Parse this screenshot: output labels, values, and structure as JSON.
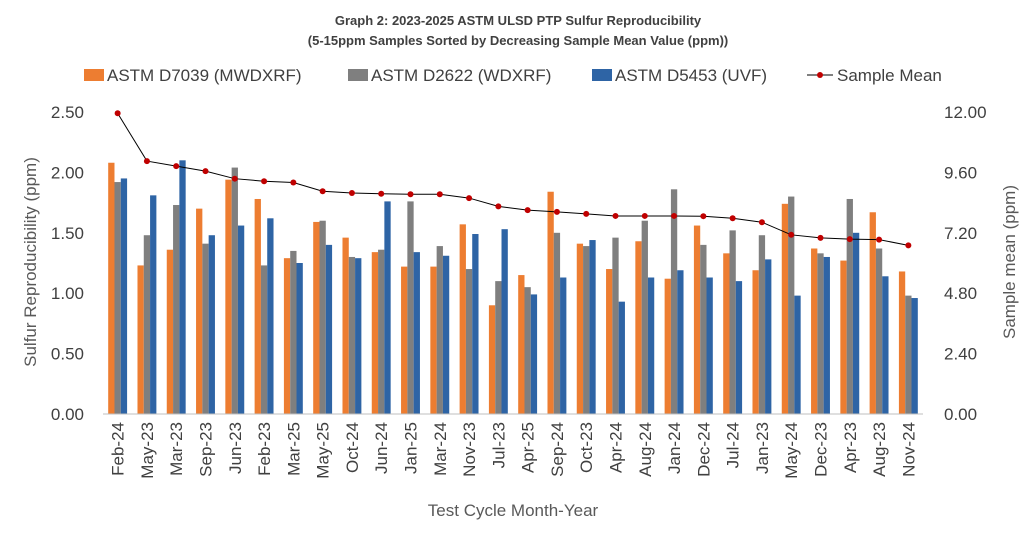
{
  "chart_data": {
    "type": "bar",
    "title": "Graph 2: 2023-2025 ASTM ULSD PTP Sulfur Reproducibility",
    "subtitle": "(5-15ppm Samples Sorted by Decreasing Sample Mean Value (ppm))",
    "xlabel": "Test Cycle Month-Year",
    "ylabel": "Sulfur Reproducibility (ppm)",
    "y2label": "Sample mean (ppm)",
    "ylim": [
      0,
      2.5
    ],
    "y2lim": [
      0,
      12
    ],
    "yticks": [
      "0.00",
      "0.50",
      "1.00",
      "1.50",
      "2.00",
      "2.50"
    ],
    "y2ticks": [
      "0.00",
      "2.40",
      "4.80",
      "7.20",
      "9.60",
      "12.00"
    ],
    "grid": false,
    "legend_position": "top",
    "categories": [
      "Feb-24",
      "May-23",
      "Mar-23",
      "Sep-23",
      "Jun-23",
      "Feb-23",
      "Mar-25",
      "May-25",
      "Oct-24",
      "Jun-24",
      "Jan-25",
      "Mar-24",
      "Nov-23",
      "Jul-23",
      "Apr-25",
      "Sep-24",
      "Oct-23",
      "Apr-24",
      "Aug-24",
      "Jan-24",
      "Dec-24",
      "Jul-24",
      "Jan-23",
      "May-24",
      "Dec-23",
      "Apr-23",
      "Aug-23",
      "Nov-24"
    ],
    "series": [
      {
        "name": "ASTM D7039 (MWDXRF)",
        "kind": "bar",
        "color": "#ED7D31",
        "values": [
          2.08,
          1.23,
          1.36,
          1.7,
          1.94,
          1.78,
          1.29,
          1.59,
          1.46,
          1.34,
          1.22,
          1.22,
          1.57,
          0.9,
          1.15,
          1.84,
          1.41,
          1.2,
          1.43,
          1.12,
          1.56,
          1.33,
          1.19,
          1.74,
          1.37,
          1.27,
          1.67,
          1.18
        ]
      },
      {
        "name": "ASTM D2622 (WDXRF)",
        "kind": "bar",
        "color": "#7F7F7F",
        "values": [
          1.92,
          1.48,
          1.73,
          1.41,
          2.04,
          1.23,
          1.35,
          1.6,
          1.3,
          1.36,
          1.76,
          1.39,
          1.2,
          1.1,
          1.05,
          1.5,
          1.39,
          1.46,
          1.6,
          1.86,
          1.4,
          1.52,
          1.48,
          1.8,
          1.33,
          1.78,
          1.37,
          0.98
        ]
      },
      {
        "name": "ASTM D5453 (UVF)",
        "kind": "bar",
        "color": "#2E64A5",
        "values": [
          1.95,
          1.81,
          2.1,
          1.48,
          1.56,
          1.62,
          1.25,
          1.4,
          1.29,
          1.76,
          1.34,
          1.31,
          1.49,
          1.53,
          0.99,
          1.13,
          1.44,
          0.93,
          1.13,
          1.19,
          1.13,
          1.1,
          1.28,
          0.98,
          1.3,
          1.5,
          1.14,
          0.96
        ]
      },
      {
        "name": "Sample Mean",
        "kind": "line",
        "axis": "right",
        "color": "#000000",
        "marker_color": "#C00000",
        "values": [
          11.95,
          10.05,
          9.85,
          9.65,
          9.35,
          9.25,
          9.2,
          8.85,
          8.78,
          8.75,
          8.73,
          8.73,
          8.58,
          8.25,
          8.1,
          8.03,
          7.95,
          7.87,
          7.87,
          7.87,
          7.86,
          7.78,
          7.62,
          7.12,
          7.0,
          6.95,
          6.93,
          6.7
        ]
      }
    ]
  }
}
